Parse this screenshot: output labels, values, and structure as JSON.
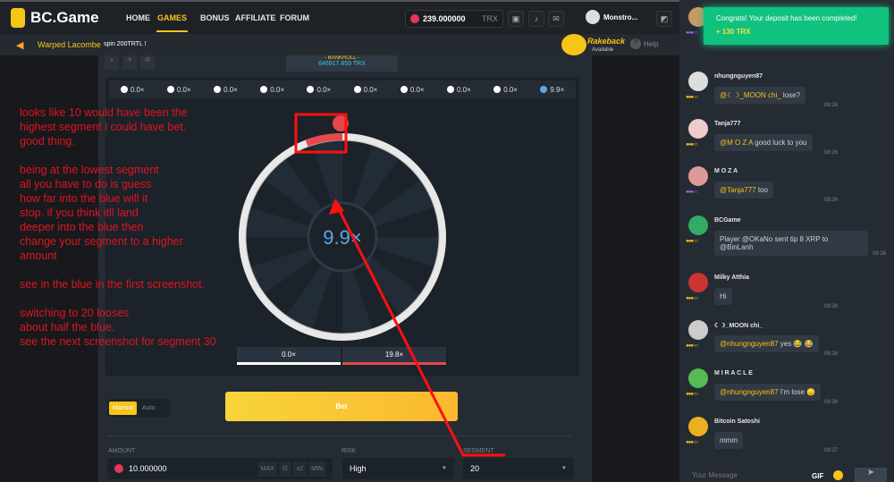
{
  "header": {
    "logo": "BC.Game",
    "nav": [
      "HOME",
      "GAMES",
      "BONUS",
      "AFFILIATE",
      "FORUM"
    ],
    "balance": "239.000000",
    "currency": "TRX",
    "user": "Monstro..."
  },
  "ticker": {
    "name": "Warped Lacombe",
    "text": "spin 200TRTL !",
    "rakeback": "Rakeback",
    "rakeback_sub": "Available",
    "help": "Help"
  },
  "bankroll": {
    "label": "- BANKROLL -",
    "value": "646917.859 TRX"
  },
  "multipliers": [
    "0.0×",
    "0.0×",
    "0.0×",
    "0.0×",
    "0.0×",
    "0.0×",
    "0.0×",
    "0.0×",
    "0.0×",
    "9.9×"
  ],
  "wheel": {
    "result": "9.9×",
    "legend": [
      {
        "label": "0.0×",
        "color": "#ffffff"
      },
      {
        "label": "19.8×",
        "color": "#e5484d"
      }
    ]
  },
  "controls": {
    "tabs": [
      "Manual",
      "Auto"
    ],
    "bet": "Bet",
    "amount_label": "AMOUNT",
    "amount": "10.000000",
    "amount_btns": [
      "MAX",
      "/2",
      "x2",
      "MIN"
    ],
    "risk_label": "RISK",
    "risk": "High",
    "segment_label": "SEGMENT",
    "segment": "20"
  },
  "annotation": "looks like 10 would have been the\nhighest segment i could have bet.\ngood thing.\n\nbeing at the lowest segment\nall you have to do is guess\nhow far into the blue will it\nstop. if you think itll land\ndeeper into the blue then\nchange your segment to a higher\namount\n\nsee in the blue in the first screenshot.\n\nswitching to 20 looses\nabout half the blue.\nsee the next screenshot for segment 30",
  "toast": {
    "title": "Congrats! Your deposit has been completed!",
    "amount": "+ 130 TRX"
  },
  "chat": {
    "messages": [
      {
        "user": "",
        "mention": "",
        "text": "",
        "time": "08:26"
      },
      {
        "user": "nhungnguyen87",
        "mention": "@☾☽_MOON chi_",
        "text": " lose?",
        "time": "08:26"
      },
      {
        "user": "Tanja777",
        "mention": "@M O Z A",
        "text": " good luck to you",
        "time": "08:26"
      },
      {
        "user": "M O Z A",
        "mention": "@Tanja777",
        "text": " too",
        "time": "08:26"
      },
      {
        "user": "BCGame",
        "mention": "",
        "text": "Player @OKaNo sent tip 8 XRP to @BinLanh",
        "time": "08:26"
      },
      {
        "user": "Milky Atthia",
        "mention": "",
        "text": "Hi",
        "time": "08:26"
      },
      {
        "user": "☾☽_MOON chi_",
        "mention": "@nhungnguyen87",
        "text": " yes 😂 😂",
        "time": "08:26"
      },
      {
        "user": "M I R A C L E",
        "mention": "@nhungnguyen87",
        "text": " I'm lose 😞",
        "time": "08:26"
      },
      {
        "user": "Bitcoin Satoshi",
        "mention": "",
        "text": "mmm",
        "time": "08:27"
      }
    ],
    "placeholder": "Your Message",
    "gif": "GIF"
  }
}
